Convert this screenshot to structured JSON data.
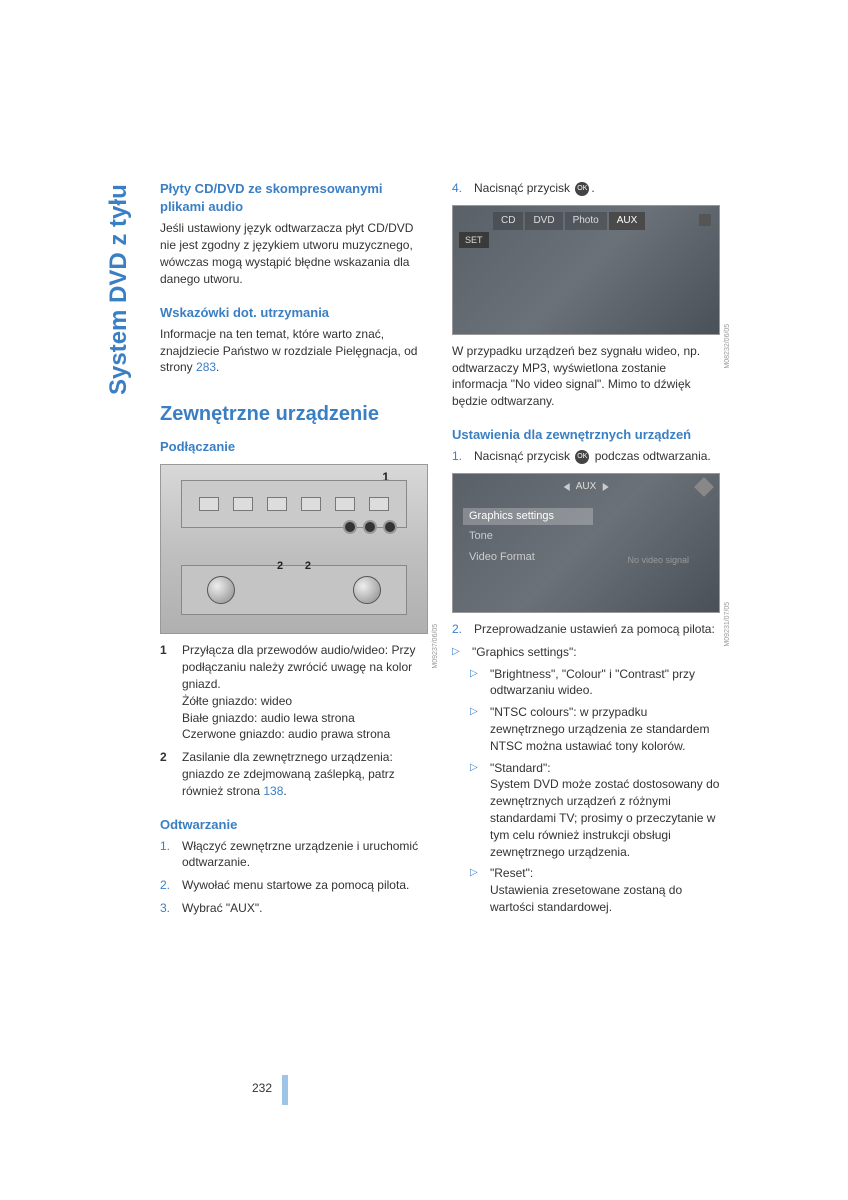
{
  "page": {
    "number": "232",
    "sidebar_title": "System DVD z tyłu"
  },
  "colors": {
    "brand_blue": "#3a7fc4",
    "light_blue": "#9ec5e8",
    "body_text": "#333333"
  },
  "left": {
    "h1": "Płyty CD/DVD ze skompresowanymi plikami audio",
    "p1": "Jeśli ustawiony język odtwarzacza płyt CD/DVD nie jest zgodny z językiem utworu muzycznego, wówczas mogą wystąpić błędne wskazania dla danego utworu.",
    "h2": "Wskazówki dot. utrzymania",
    "p2a": "Informacje na ten temat, które warto znać, znajdziecie Państwo w rozdziale Pielęgnacja, od strony ",
    "p2_ref": "283",
    "p2b": ".",
    "h3": "Zewnętrzne urządzenie",
    "h4": "Podłączanie",
    "fig1": {
      "label1": "1",
      "label2a": "2",
      "label2b": "2",
      "sidecode": "M09237/06/05"
    },
    "list1": {
      "n1": "1",
      "t1": "Przyłącza dla przewodów audio/wideo: Przy podłączaniu należy zwrócić uwagę na kolor gniazd.",
      "t1b": "Żółte gniazdo: wideo",
      "t1c": "Białe gniazdo: audio lewa strona",
      "t1d": "Czerwone gniazdo: audio prawa strona",
      "n2": "2",
      "t2a": "Zasilanie dla zewnętrznego urządzenia: gniazdo ze zdejmowaną zaślepką, patrz również strona ",
      "t2_ref": "138",
      "t2b": "."
    },
    "h5": "Odtwarzanie",
    "ol1": {
      "n1": "1.",
      "t1": "Włączyć zewnętrzne urządzenie i uruchomić odtwarzanie.",
      "n2": "2.",
      "t2": "Wywołać menu startowe za pomocą pilota.",
      "n3": "3.",
      "t3": "Wybrać \"AUX\"."
    }
  },
  "right": {
    "ol_cont": {
      "n4": "4.",
      "t4a": "Nacisnąć przycisk ",
      "t4_icon": "OK",
      "t4b": "."
    },
    "fig2": {
      "tabs": [
        "CD",
        "DVD",
        "Photo",
        "AUX"
      ],
      "set_label": "SET",
      "sidecode": "M08232/06/05"
    },
    "p3": "W przypadku urządzeń bez sygnału wideo, np. odtwarzaczy MP3, wyświetlona zostanie informacja \"No video signal\". Mimo to dźwięk będzie odtwarzany.",
    "h6": "Ustawienia dla zewnętrznych urządzeń",
    "ol2": {
      "n1": "1.",
      "t1a": "Nacisnąć przycisk ",
      "t1_icon": "OK",
      "t1b": " podczas odtwarzania."
    },
    "fig3": {
      "aux_label": "AUX",
      "menu": [
        "Graphics settings",
        "Tone",
        "Video Format"
      ],
      "signal_text": "No video signal",
      "sidecode": "M09231/07/05"
    },
    "ol3": {
      "n2": "2.",
      "t2": "Przeprowadzanie ustawień za pomocą pilota:"
    },
    "tri": {
      "t1": "\"Graphics settings\":",
      "sub1": "\"Brightness\", \"Colour\" i \"Contrast\" przy odtwarzaniu wideo.",
      "sub2": "\"NTSC colours\": w przypadku zewnętrznego urządzenia ze standardem NTSC można ustawiać tony kolorów.",
      "sub3a": "\"Standard\":",
      "sub3b": "System DVD może zostać dostosowany do zewnętrznych urządzeń z różnymi standardami TV; prosimy o przeczytanie w tym celu również instrukcji obsługi zewnętrznego urządzenia.",
      "sub4a": "\"Reset\":",
      "sub4b": "Ustawienia zresetowane zostaną do wartości standardowej."
    }
  }
}
